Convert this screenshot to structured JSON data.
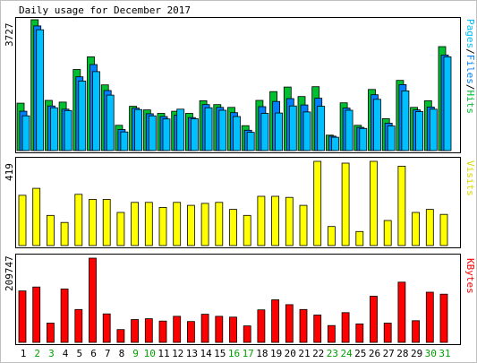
{
  "chart_data": {
    "type": "bar",
    "title": "Daily usage for December 2017",
    "categories": [
      "1",
      "2",
      "3",
      "4",
      "5",
      "6",
      "7",
      "8",
      "9",
      "10",
      "11",
      "12",
      "13",
      "14",
      "15",
      "16",
      "17",
      "18",
      "19",
      "20",
      "21",
      "22",
      "23",
      "24",
      "25",
      "26",
      "27",
      "28",
      "29",
      "30",
      "31"
    ],
    "weekend_days": [
      "2",
      "3",
      "9",
      "10",
      "16",
      "17",
      "23",
      "24",
      "30",
      "31"
    ],
    "legend": {
      "pages": "Pages",
      "files": "Files",
      "hits": "Hits",
      "separator": "/",
      "visits": "Visits",
      "kbytes": "KBytes"
    },
    "panels": [
      {
        "name": "hits-panel",
        "max_label": "3727",
        "ylim": [
          0,
          3727
        ],
        "series": [
          {
            "name": "Hits",
            "color": "#00c030",
            "values": [
              1350,
              3727,
              1430,
              1380,
              2310,
              2670,
              1870,
              720,
              1260,
              1160,
              1060,
              1120,
              1060,
              1420,
              1310,
              1230,
              710,
              1430,
              1680,
              1810,
              1540,
              1820,
              440,
              1360,
              720,
              1740,
              910,
              2000,
              1230,
              1420,
              2960
            ]
          },
          {
            "name": "Files",
            "color": "#0080ff",
            "values": [
              1120,
              3550,
              1270,
              1180,
              2100,
              2450,
              1710,
              600,
              1210,
              1050,
              970,
              1010,
              940,
              1310,
              1230,
              1080,
              580,
              1250,
              1400,
              1480,
              1300,
              1490,
              410,
              1210,
              660,
              1590,
              780,
              1880,
              1160,
              1240,
              2720
            ]
          },
          {
            "name": "Pages",
            "color": "#00c0ff",
            "values": [
              990,
              3440,
              1220,
              1140,
              1980,
              2250,
              1580,
              530,
              1170,
              990,
              900,
              1180,
              910,
              1220,
              1150,
              970,
              520,
              1060,
              1070,
              1270,
              1100,
              1260,
              380,
              1150,
              630,
              1460,
              700,
              1700,
              1110,
              1180,
              2670
            ]
          }
        ]
      },
      {
        "name": "visits-panel",
        "max_label": "419",
        "ylim": [
          0,
          419
        ],
        "series": [
          {
            "name": "Visits",
            "color": "#ffff00",
            "values": [
              250,
              285,
              150,
              115,
              255,
              230,
              230,
              165,
              215,
              215,
              190,
              215,
              200,
              210,
              215,
              180,
              150,
              245,
              245,
              240,
              200,
              419,
              95,
              410,
              70,
              419,
              125,
              395,
              165,
              180,
              155
            ]
          }
        ]
      },
      {
        "name": "kbytes-panel",
        "max_label": "209747",
        "ylim": [
          0,
          209747
        ],
        "series": [
          {
            "name": "KBytes",
            "color": "#ff0000",
            "values": [
              128000,
              138000,
              48000,
              133000,
              82000,
              209747,
              71000,
              32000,
              57000,
              59000,
              53000,
              65000,
              52000,
              70000,
              65000,
              63000,
              41000,
              81000,
              106000,
              94000,
              82000,
              68000,
              42000,
              74000,
              46000,
              115000,
              48000,
              150000,
              54000,
              125000,
              120000
            ]
          }
        ]
      }
    ]
  },
  "colors": {
    "background": "#ffffff",
    "weekday_label": "#000000",
    "weekend_label": "#00a000",
    "pages": "#00c0ff",
    "files": "#0080ff",
    "hits": "#00c030",
    "visits": "#ffff00",
    "kbytes": "#ff0000"
  }
}
